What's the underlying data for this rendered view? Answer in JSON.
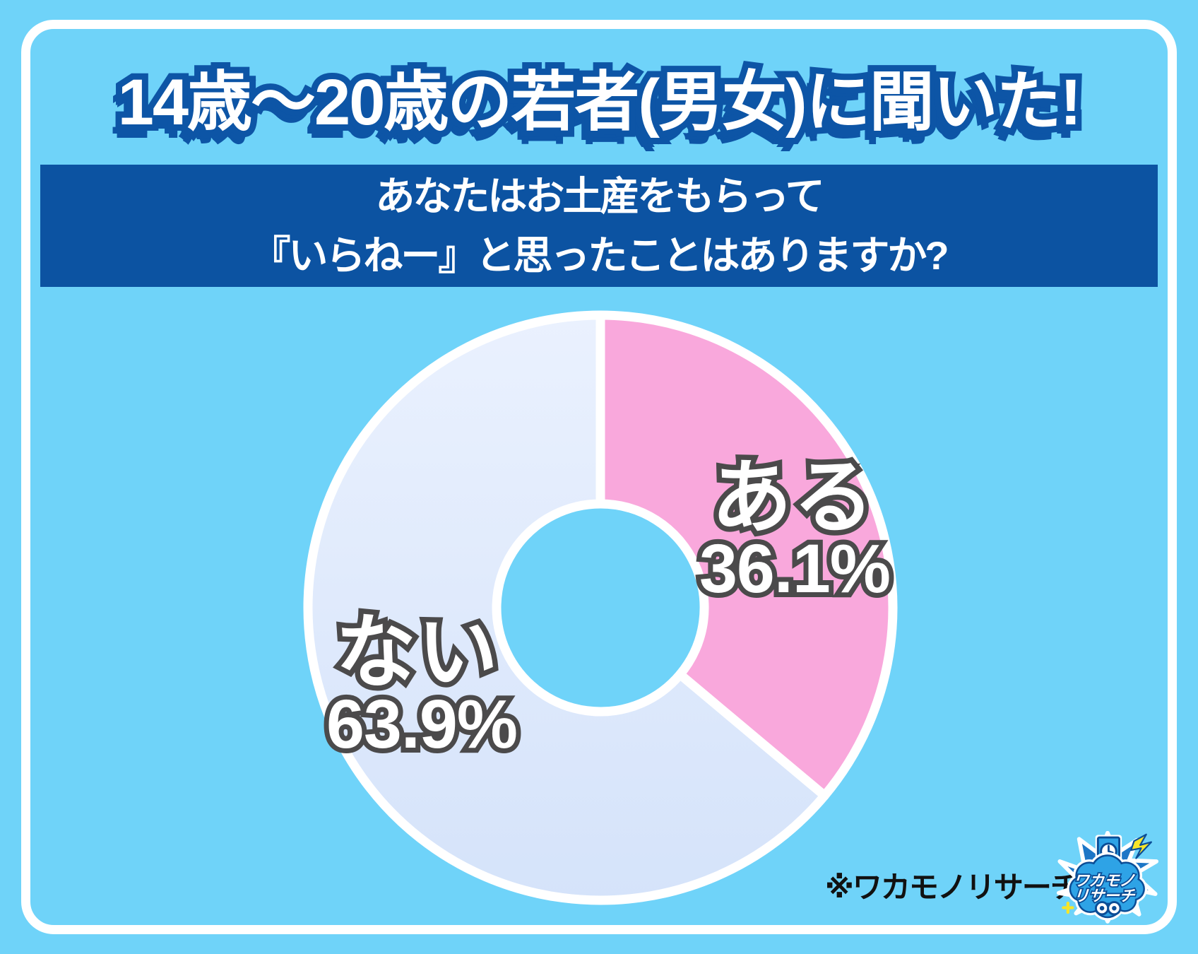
{
  "title": "14歳～20歳の若者(男女)に聞いた!",
  "question": {
    "line1": "あなたはお土産をもらって",
    "line2": "『いらねー』と思ったことはありますか?"
  },
  "note": "※ワカモノリサーチ調べ",
  "logo": {
    "line1": "ワカモノ",
    "line2": "リサーチ"
  },
  "chart_data": {
    "type": "pie",
    "donut": true,
    "title": "あなたはお土産をもらって『いらねー』と思ったことはありますか?",
    "labels": [
      "ある",
      "ない"
    ],
    "values": [
      36.1,
      63.9
    ],
    "value_labels": [
      "36.1%",
      "63.9%"
    ],
    "colors": [
      "#F9A8DC",
      "#DEE9FB"
    ],
    "slice_gradients": [
      null,
      [
        "#EAF1FE",
        "#D5E3FA"
      ]
    ],
    "start_angle": "top",
    "direction": "clockwise",
    "separator_color": "#FFFFFF",
    "legend": "none"
  },
  "colors": {
    "background": "#6FD3F9",
    "banner": "#0C53A2",
    "title_outline": "#0D55A6",
    "label_outline": "#4B4A4B",
    "frame": "#FFFFFF",
    "note_text": "#111111",
    "logo_blue": "#2EA3E6",
    "logo_navy": "#0B4D96",
    "logo_burst": "#1D76C6",
    "logo_yellow": "#F7E528"
  }
}
